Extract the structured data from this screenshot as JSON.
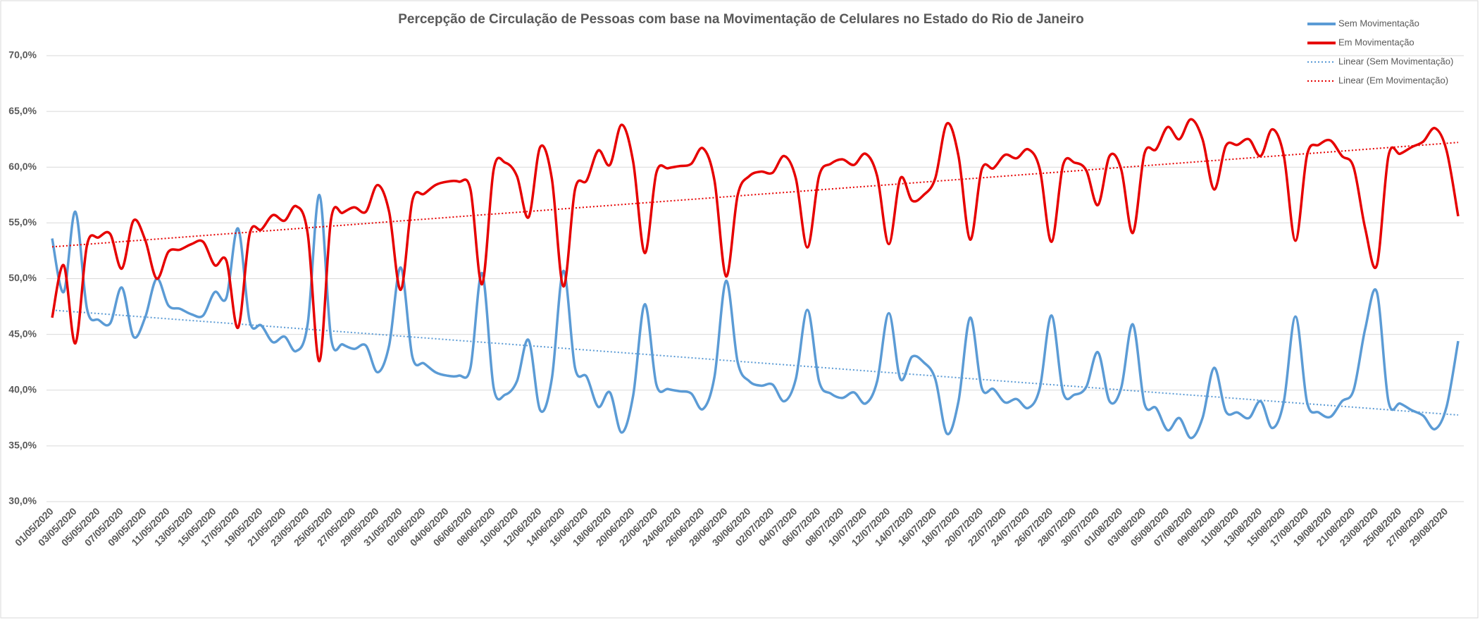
{
  "chart_data": {
    "type": "line",
    "title": "Percepção de Circulação de Pessoas com base na Movimentação de Celulares no Estado do Rio de Janeiro",
    "categories": [
      "01/05/2020",
      null,
      "03/05/2020",
      null,
      "05/05/2020",
      null,
      "07/05/2020",
      null,
      "09/05/2020",
      null,
      "11/05/2020",
      null,
      "13/05/2020",
      null,
      "15/05/2020",
      null,
      "17/05/2020",
      null,
      "19/05/2020",
      null,
      "21/05/2020",
      null,
      "23/05/2020",
      null,
      "25/05/2020",
      null,
      "27/05/2020",
      null,
      "29/05/2020",
      null,
      "31/05/2020",
      null,
      "02/06/2020",
      null,
      "04/06/2020",
      null,
      "06/06/2020",
      null,
      "08/06/2020",
      null,
      "10/06/2020",
      null,
      "12/06/2020",
      null,
      "14/06/2020",
      null,
      "16/06/2020",
      null,
      "18/06/2020",
      null,
      "20/06/2020",
      null,
      "22/06/2020",
      null,
      "24/06/2020",
      null,
      "26/06/2020",
      null,
      "28/06/2020",
      null,
      "30/06/2020",
      null,
      "02/07/2020",
      null,
      "04/07/2020",
      null,
      "06/07/2020",
      null,
      "08/07/2020",
      null,
      "10/07/2020",
      null,
      "12/07/2020",
      null,
      "14/07/2020",
      null,
      "16/07/2020",
      null,
      "18/07/2020",
      null,
      "20/07/2020",
      null,
      "22/07/2020",
      null,
      "24/07/2020",
      null,
      "26/07/2020",
      null,
      "28/07/2020",
      null,
      "30/07/2020",
      null,
      "01/08/2020",
      null,
      "03/08/2020",
      null,
      "05/08/2020",
      null,
      "07/08/2020",
      null,
      "09/08/2020",
      null,
      "11/08/2020",
      null,
      "13/08/2020",
      null,
      "15/08/2020",
      null,
      "17/08/2020",
      null,
      "19/08/2020",
      null,
      "21/08/2020",
      null,
      "23/08/2020",
      null,
      "25/08/2020",
      null,
      "27/08/2020",
      null,
      "29/08/2020",
      null
    ],
    "series": [
      {
        "name": "Sem Movimentação",
        "color": "#5b9bd5",
        "values": [
          53.6,
          48.8,
          56.0,
          47.3,
          46.3,
          46.0,
          49.2,
          44.8,
          46.5,
          50.0,
          47.6,
          47.3,
          46.8,
          46.7,
          48.8,
          48.3,
          54.5,
          46.2,
          45.8,
          44.3,
          44.8,
          43.5,
          46.0,
          57.5,
          44.7,
          44.1,
          43.7,
          44.0,
          41.6,
          44.0,
          51.0,
          43.0,
          42.4,
          41.6,
          41.3,
          41.3,
          42.0,
          50.5,
          40.2,
          39.6,
          40.8,
          44.5,
          38.2,
          41.0,
          50.7,
          42.0,
          41.2,
          38.5,
          39.8,
          36.2,
          39.5,
          47.7,
          40.5,
          40.1,
          39.9,
          39.7,
          38.3,
          41.2,
          49.8,
          42.5,
          40.8,
          40.4,
          40.5,
          39.0,
          41.0,
          47.2,
          40.8,
          39.7,
          39.3,
          39.8,
          38.8,
          40.8,
          46.9,
          41.0,
          43.0,
          42.5,
          41.0,
          36.1,
          39.0,
          46.5,
          40.2,
          40.1,
          38.9,
          39.2,
          38.4,
          40.2,
          46.7,
          39.8,
          39.6,
          40.3,
          43.4,
          39.0,
          40.2,
          45.9,
          38.8,
          38.4,
          36.4,
          37.5,
          35.7,
          37.5,
          42.0,
          38.1,
          38.0,
          37.5,
          39.0,
          36.6,
          39.0,
          46.6,
          38.9,
          38.0,
          37.6,
          39.0,
          40.0,
          45.5,
          48.8,
          39.0,
          38.8,
          38.2,
          37.7,
          36.5,
          38.5,
          44.4
        ],
        "trendline": {
          "name": "Linear (Sem Movimentação)",
          "type": "linear",
          "color": "#5b9bd5"
        }
      },
      {
        "name": "Em  Movimentação",
        "color": "#e60000",
        "values": [
          46.5,
          51.2,
          44.2,
          53.0,
          53.7,
          54.0,
          50.9,
          55.2,
          53.5,
          50.0,
          52.4,
          52.6,
          53.1,
          53.3,
          51.2,
          51.6,
          45.6,
          54.0,
          54.4,
          55.7,
          55.2,
          56.5,
          54.0,
          42.6,
          55.3,
          55.9,
          56.4,
          56.0,
          58.4,
          56.0,
          49.0,
          57.0,
          57.6,
          58.4,
          58.7,
          58.7,
          58.0,
          49.5,
          59.8,
          60.4,
          59.2,
          55.5,
          61.8,
          59.0,
          49.3,
          58.0,
          58.8,
          61.5,
          60.2,
          63.8,
          60.5,
          52.3,
          59.5,
          59.9,
          60.1,
          60.3,
          61.7,
          58.8,
          50.2,
          57.5,
          59.2,
          59.6,
          59.5,
          61.0,
          59.0,
          52.8,
          59.2,
          60.3,
          60.7,
          60.2,
          61.2,
          59.2,
          53.1,
          59.0,
          57.0,
          57.5,
          59.0,
          63.9,
          61.0,
          53.5,
          59.8,
          59.9,
          61.1,
          60.8,
          61.6,
          59.8,
          53.3,
          60.2,
          60.4,
          59.7,
          56.6,
          61.0,
          59.8,
          54.1,
          61.2,
          61.6,
          63.6,
          62.5,
          64.3,
          62.5,
          58.0,
          61.9,
          62.0,
          62.5,
          61.0,
          63.4,
          61.0,
          53.4,
          61.1,
          62.0,
          62.4,
          61.0,
          60.0,
          54.5,
          51.2,
          61.0,
          61.2,
          61.8,
          62.3,
          63.5,
          61.5,
          55.6
        ],
        "trendline": {
          "name": "Linear (Em  Movimentação)",
          "type": "linear",
          "color": "#e60000"
        }
      }
    ],
    "ylim": [
      30,
      70
    ],
    "yticks": [
      {
        "value": 30,
        "label": "30,0%"
      },
      {
        "value": 35,
        "label": "35,0%"
      },
      {
        "value": 40,
        "label": "40,0%"
      },
      {
        "value": 45,
        "label": "45,0%"
      },
      {
        "value": 50,
        "label": "50,0%"
      },
      {
        "value": 55,
        "label": "55,0%"
      },
      {
        "value": 60,
        "label": "60,0%"
      },
      {
        "value": 65,
        "label": "65,0%"
      },
      {
        "value": 70,
        "label": "70,0%"
      }
    ],
    "grid": true,
    "smooth": true,
    "legend": "top-right"
  }
}
